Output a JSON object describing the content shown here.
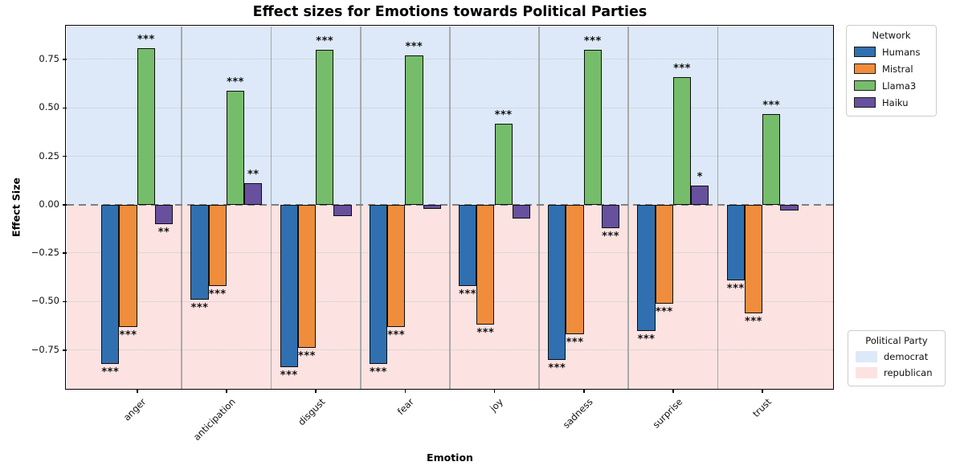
{
  "title": "Effect sizes for Emotions towards Political Parties",
  "x_axis": {
    "label": "Emotion"
  },
  "y_axis": {
    "label": "Effect Size",
    "ticks": [
      {
        "label": "0.75",
        "value": 0.75
      },
      {
        "label": "0.50",
        "value": 0.5
      },
      {
        "label": "0.25",
        "value": 0.25
      },
      {
        "label": "0.00",
        "value": 0.0
      },
      {
        "label": "−0.25",
        "value": -0.25
      },
      {
        "label": "−0.50",
        "value": -0.5
      },
      {
        "label": "−0.75",
        "value": -0.75
      }
    ]
  },
  "legend_network": {
    "title": "Network",
    "items": [
      {
        "label": "Humans",
        "color": "#3070b0"
      },
      {
        "label": "Mistral",
        "color": "#ef8d3c"
      },
      {
        "label": "Llama3",
        "color": "#76bd6b"
      },
      {
        "label": "Haiku",
        "color": "#67509e"
      }
    ]
  },
  "legend_party": {
    "title": "Political Party",
    "items": [
      {
        "label": "democrat",
        "color": "#dde9f8"
      },
      {
        "label": "republican",
        "color": "#fce3e2"
      }
    ]
  },
  "chart_data": {
    "type": "bar",
    "title": "Effect sizes for Emotions towards Political Parties",
    "xlabel": "Emotion",
    "ylabel": "Effect Size",
    "categories": [
      "anger",
      "anticipation",
      "disgust",
      "fear",
      "joy",
      "sadness",
      "surprise",
      "trust"
    ],
    "series": [
      {
        "name": "Humans",
        "color": "#3070b0",
        "values": [
          -0.82,
          -0.49,
          -0.84,
          -0.82,
          -0.42,
          -0.8,
          -0.65,
          -0.39
        ],
        "significance": [
          "***",
          "***",
          "***",
          "***",
          "***",
          "***",
          "***",
          "***"
        ]
      },
      {
        "name": "Mistral",
        "color": "#ef8d3c",
        "values": [
          -0.63,
          -0.42,
          -0.74,
          -0.63,
          -0.62,
          -0.67,
          -0.51,
          -0.56
        ],
        "significance": [
          "***",
          "***",
          "***",
          "***",
          "***",
          "***",
          "***",
          "***"
        ]
      },
      {
        "name": "Llama3",
        "color": "#76bd6b",
        "values": [
          0.81,
          0.59,
          0.8,
          0.77,
          0.42,
          0.8,
          0.66,
          0.47
        ],
        "significance": [
          "***",
          "***",
          "***",
          "***",
          "***",
          "***",
          "***",
          "***"
        ]
      },
      {
        "name": "Haiku",
        "color": "#67509e",
        "values": [
          -0.1,
          0.11,
          -0.06,
          -0.02,
          -0.07,
          -0.12,
          0.1,
          -0.03
        ],
        "significance": [
          "**",
          "**",
          "",
          "",
          "",
          "***",
          "*",
          ""
        ]
      }
    ],
    "ylim": [
      -0.95,
      0.92
    ],
    "grid_values": [
      0.75,
      0.5,
      0.25,
      -0.25,
      -0.5,
      -0.75
    ],
    "zero_line": {
      "value": 0,
      "style": "dashed",
      "color": "#7f7f7f"
    },
    "background_bands": [
      {
        "label": "democrat",
        "color": "#dde9f8",
        "range": [
          0,
          0.92
        ]
      },
      {
        "label": "republican",
        "color": "#fce3e2",
        "range": [
          -0.95,
          0
        ]
      }
    ],
    "legend_position": {
      "network": "upper-right-outside",
      "party": "lower-right-outside"
    },
    "grid": "dotted-horizontal",
    "group_separators": true
  }
}
